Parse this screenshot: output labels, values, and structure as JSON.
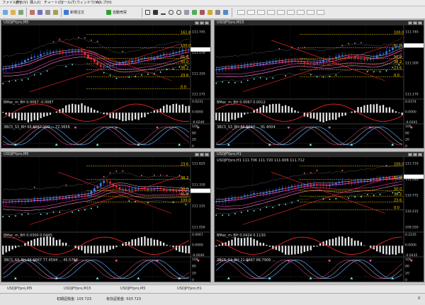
{
  "menu": [
    "ファイル(F)",
    "表示(V)",
    "挿入(I)",
    "チャート(C)",
    "ツール(T)",
    "ウィンドウ(W)",
    "ヘルプ(H)"
  ],
  "toolbar": {
    "new_order": "新規注文",
    "auto_trade": "自動売買"
  },
  "windows": [
    {
      "title": "USDJPYpro,M5",
      "ohlc": "",
      "levels": [
        "161.8",
        "100.0",
        "61.8",
        "50.0",
        "38.2",
        "23.6",
        "0.0"
      ],
      "prices": [
        "111.745",
        "111.570",
        "111.310",
        "111.175"
      ],
      "osc_label": "BMac_m_BH 0.0067 -0.0087",
      "stoch_label": "3BC5_S3_BH 66.6667 100 ... 72.3656",
      "osc_vals": [
        "0.0231",
        "0.0000",
        "-0.0246"
      ],
      "stoch_vals": [
        "100",
        "80",
        "20",
        "0"
      ]
    },
    {
      "title": "USDJPYpro,M15",
      "ohlc": "",
      "levels": [
        "100.0",
        "61.8",
        "50.0",
        "38.2",
        "23.6",
        "0.0"
      ],
      "prices": [
        "111.740",
        "111.500",
        "111.170"
      ],
      "osc_label": "BMac_m_BH 0.0067 0.0012",
      "stoch_label": "3BC5_S3_BH 66.6667 ... 91.4004",
      "osc_vals": [
        "0.0374",
        "0.0000",
        "-0.0341"
      ],
      "stoch_vals": [
        "100",
        "80",
        "20",
        "0"
      ]
    },
    {
      "title": "USDJPYpro,M5",
      "ohlc": "",
      "levels": [
        "23.6",
        "38.2",
        "50.0",
        "61.8",
        "100.0"
      ],
      "prices": [
        "111.625",
        "111.330",
        "111.125",
        "111.050"
      ],
      "osc_label": "BMac_m_BH 0.0300 0.0445",
      "stoch_label": "3BC5_S3_BH 66.6667 77.4594 ... 45.5768",
      "osc_vals": [
        "0.0067",
        "0.0000",
        "-0.0046"
      ],
      "stoch_vals": [
        "100",
        "80",
        "20",
        "0"
      ]
    },
    {
      "title": "USDJPYpro,H1",
      "ohlc": "USDJPYpro,H1 111.706 111.720 111.606 111.712",
      "levels": [
        "100.0",
        "61.8",
        "50.0",
        "38.2",
        "23.6",
        "0.0"
      ],
      "prices": [
        "111.710",
        "111.240",
        "110.775",
        "110.215",
        "109.550"
      ],
      "osc_label": "BMac_m_BH 0.0424 0.1130",
      "stoch_label": "3BC5_S3_BH 21.6667 66.7906 ...",
      "osc_vals": [
        "0.2235",
        "0.0000",
        "-0.0435"
      ],
      "stoch_vals": [
        "100",
        "80",
        "20",
        "0"
      ]
    }
  ],
  "tabs": [
    "USDJPYpro,M5",
    "USDJPYpro,M15",
    "USDJPYpro,M5",
    "USDJPYpro,H1"
  ],
  "status": {
    "left_a": "初期証拠金: 103 723",
    "left_b": "有効証拠金: 503 723",
    "right": "0"
  },
  "colors": {
    "bull": "#3a7bff",
    "bear": "#ff2a2a",
    "ma": "#ff3fb5",
    "sar_up": "#7ffcff",
    "sar_dn": "#ff6b8a",
    "fibo": "#ffd400",
    "band": "#9aa0a8"
  }
}
